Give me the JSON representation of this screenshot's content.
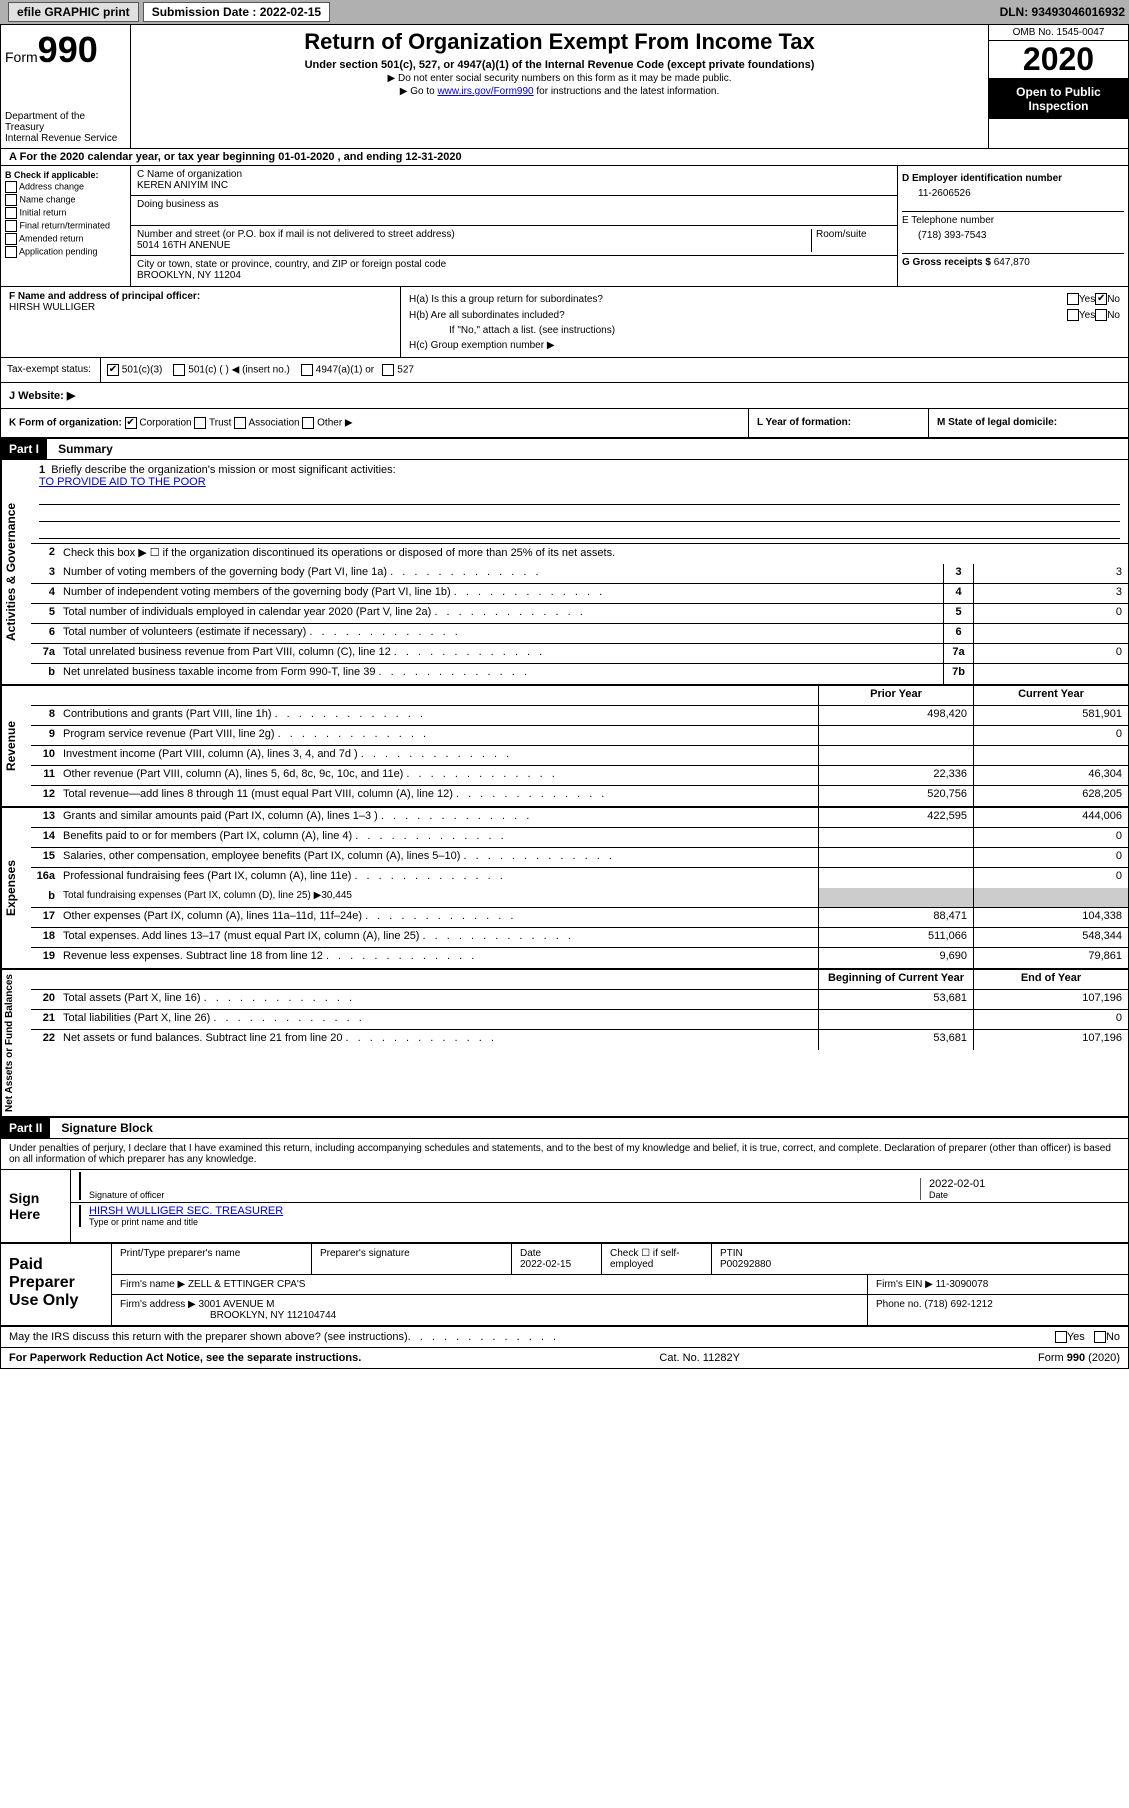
{
  "topbar": {
    "efile": "efile GRAPHIC print",
    "submission_label": "Submission Date : 2022-02-15",
    "dln": "DLN: 93493046016932"
  },
  "header": {
    "form_label": "Form",
    "form_num": "990",
    "dept": "Department of the Treasury",
    "irs": "Internal Revenue Service",
    "title": "Return of Organization Exempt From Income Tax",
    "subtitle": "Under section 501(c), 527, or 4947(a)(1) of the Internal Revenue Code (except private foundations)",
    "note1": "▶ Do not enter social security numbers on this form as it may be made public.",
    "note2_pre": "▶ Go to ",
    "note2_link": "www.irs.gov/Form990",
    "note2_post": " for instructions and the latest information.",
    "omb": "OMB No. 1545-0047",
    "year": "2020",
    "inspect": "Open to Public Inspection"
  },
  "period": "For the 2020 calendar year, or tax year beginning 01-01-2020   , and ending 12-31-2020",
  "box_b": {
    "label": "B Check if applicable:",
    "opts": [
      "Address change",
      "Name change",
      "Initial return",
      "Final return/terminated",
      "Amended return",
      "Application pending"
    ]
  },
  "box_c": {
    "name_label": "C Name of organization",
    "name": "KEREN ANIYIM INC",
    "dba_label": "Doing business as",
    "addr_label": "Number and street (or P.O. box if mail is not delivered to street address)",
    "room_label": "Room/suite",
    "addr": "5014 16TH ANENUE",
    "city_label": "City or town, state or province, country, and ZIP or foreign postal code",
    "city": "BROOKLYN, NY  11204"
  },
  "box_d": {
    "label": "D Employer identification number",
    "val": "11-2606526"
  },
  "box_e": {
    "label": "E Telephone number",
    "val": "(718) 393-7543"
  },
  "box_g": {
    "label": "G Gross receipts $",
    "val": "647,870"
  },
  "box_f": {
    "label": "F  Name and address of principal officer:",
    "name": "HIRSH WULLIGER"
  },
  "box_h": {
    "a": "H(a)  Is this a group return for subordinates?",
    "b": "H(b)  Are all subordinates included?",
    "b_note": "If \"No,\" attach a list. (see instructions)",
    "c": "H(c)  Group exemption number ▶"
  },
  "tax_status": {
    "label": "Tax-exempt status:",
    "opts": [
      "501(c)(3)",
      "501(c) (  ) ◀ (insert no.)",
      "4947(a)(1) or",
      "527"
    ]
  },
  "website": "J   Website: ▶",
  "k_label": "K Form of organization:",
  "k_opts": [
    "Corporation",
    "Trust",
    "Association",
    "Other ▶"
  ],
  "l_label": "L Year of formation:",
  "m_label": "M State of legal domicile:",
  "part1": {
    "num": "Part I",
    "title": "Summary"
  },
  "sections": {
    "gov": "Activities & Governance",
    "rev": "Revenue",
    "exp": "Expenses",
    "net": "Net Assets or Fund Balances"
  },
  "line1": {
    "label": "Briefly describe the organization's mission or most significant activities:",
    "val": "TO PROVIDE AID TO THE POOR"
  },
  "line2": "Check this box ▶ ☐  if the organization discontinued its operations or disposed of more than 25% of its net assets.",
  "lines_gov": [
    {
      "n": "3",
      "t": "Number of voting members of the governing body (Part VI, line 1a)",
      "b": "3",
      "v": "3"
    },
    {
      "n": "4",
      "t": "Number of independent voting members of the governing body (Part VI, line 1b)",
      "b": "4",
      "v": "3"
    },
    {
      "n": "5",
      "t": "Total number of individuals employed in calendar year 2020 (Part V, line 2a)",
      "b": "5",
      "v": "0"
    },
    {
      "n": "6",
      "t": "Total number of volunteers (estimate if necessary)",
      "b": "6",
      "v": ""
    },
    {
      "n": "7a",
      "t": "Total unrelated business revenue from Part VIII, column (C), line 12",
      "b": "7a",
      "v": "0"
    },
    {
      "n": "b",
      "t": "Net unrelated business taxable income from Form 990-T, line 39",
      "b": "7b",
      "v": ""
    }
  ],
  "col_headers": {
    "prior": "Prior Year",
    "current": "Current Year",
    "begin": "Beginning of Current Year",
    "end": "End of Year"
  },
  "lines_rev": [
    {
      "n": "8",
      "t": "Contributions and grants (Part VIII, line 1h)",
      "p": "498,420",
      "c": "581,901"
    },
    {
      "n": "9",
      "t": "Program service revenue (Part VIII, line 2g)",
      "p": "",
      "c": "0"
    },
    {
      "n": "10",
      "t": "Investment income (Part VIII, column (A), lines 3, 4, and 7d )",
      "p": "",
      "c": ""
    },
    {
      "n": "11",
      "t": "Other revenue (Part VIII, column (A), lines 5, 6d, 8c, 9c, 10c, and 11e)",
      "p": "22,336",
      "c": "46,304"
    },
    {
      "n": "12",
      "t": "Total revenue—add lines 8 through 11 (must equal Part VIII, column (A), line 12)",
      "p": "520,756",
      "c": "628,205"
    }
  ],
  "lines_exp": [
    {
      "n": "13",
      "t": "Grants and similar amounts paid (Part IX, column (A), lines 1–3 )",
      "p": "422,595",
      "c": "444,006"
    },
    {
      "n": "14",
      "t": "Benefits paid to or for members (Part IX, column (A), line 4)",
      "p": "",
      "c": "0"
    },
    {
      "n": "15",
      "t": "Salaries, other compensation, employee benefits (Part IX, column (A), lines 5–10)",
      "p": "",
      "c": "0"
    },
    {
      "n": "16a",
      "t": "Professional fundraising fees (Part IX, column (A), line 11e)",
      "p": "",
      "c": "0"
    }
  ],
  "line16b": {
    "n": "b",
    "t": "Total fundraising expenses (Part IX, column (D), line 25) ▶30,445"
  },
  "lines_exp2": [
    {
      "n": "17",
      "t": "Other expenses (Part IX, column (A), lines 11a–11d, 11f–24e)",
      "p": "88,471",
      "c": "104,338"
    },
    {
      "n": "18",
      "t": "Total expenses. Add lines 13–17 (must equal Part IX, column (A), line 25)",
      "p": "511,066",
      "c": "548,344"
    },
    {
      "n": "19",
      "t": "Revenue less expenses. Subtract line 18 from line 12",
      "p": "9,690",
      "c": "79,861"
    }
  ],
  "lines_net": [
    {
      "n": "20",
      "t": "Total assets (Part X, line 16)",
      "p": "53,681",
      "c": "107,196"
    },
    {
      "n": "21",
      "t": "Total liabilities (Part X, line 26)",
      "p": "",
      "c": "0"
    },
    {
      "n": "22",
      "t": "Net assets or fund balances. Subtract line 21 from line 20",
      "p": "53,681",
      "c": "107,196"
    }
  ],
  "part2": {
    "num": "Part II",
    "title": "Signature Block"
  },
  "penalty": "Under penalties of perjury, I declare that I have examined this return, including accompanying schedules and statements, and to the best of my knowledge and belief, it is true, correct, and complete. Declaration of preparer (other than officer) is based on all information of which preparer has any knowledge.",
  "sign": {
    "here": "Sign Here",
    "sig_label": "Signature of officer",
    "date_label": "Date",
    "date": "2022-02-01",
    "name": "HIRSH WULLIGER  SEC. TREASURER",
    "name_label": "Type or print name and title"
  },
  "prep": {
    "title": "Paid Preparer Use Only",
    "h1": "Print/Type preparer's name",
    "h2": "Preparer's signature",
    "h3_label": "Date",
    "h3": "2022-02-15",
    "h4": "Check ☐ if self-employed",
    "h5_label": "PTIN",
    "h5": "P00292880",
    "firm_label": "Firm's name    ▶",
    "firm": "ZELL & ETTINGER CPA'S",
    "ein_label": "Firm's EIN ▶",
    "ein": "11-3090078",
    "addr_label": "Firm's address ▶",
    "addr1": "3001 AVENUE M",
    "addr2": "BROOKLYN, NY  112104744",
    "phone_label": "Phone no.",
    "phone": "(718) 692-1212"
  },
  "discuss": "May the IRS discuss this return with the preparer shown above? (see instructions)",
  "footer": {
    "left": "For Paperwork Reduction Act Notice, see the separate instructions.",
    "mid": "Cat. No. 11282Y",
    "right": "Form 990 (2020)"
  }
}
